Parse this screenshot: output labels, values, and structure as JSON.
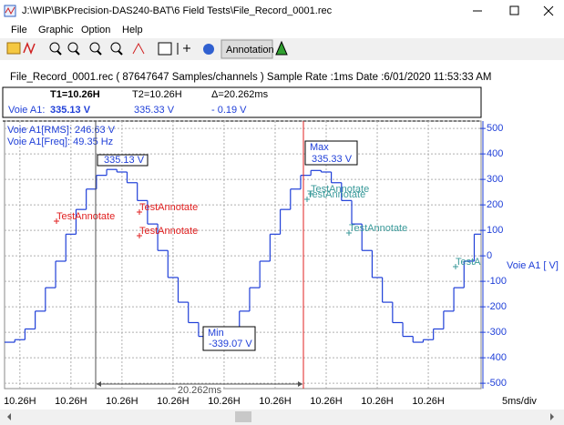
{
  "window": {
    "title": "J:\\WIP\\BKPrecision-DAS240-BAT\\6 Field Tests\\File_Record_0001.rec"
  },
  "menu": [
    "File",
    "Graphic",
    "Option",
    "Help"
  ],
  "toolbar": {
    "annotation": "Annotation"
  },
  "info": "File_Record_0001.rec  ( 87647647 Samples/channels ) Sample Rate :1ms  Date :6/01/2020  11:53:33 AM",
  "cursor_table": {
    "header": [
      "T1=10.26H",
      "T2=10.26H",
      "Δ=20.262ms"
    ],
    "row": [
      "Voie A1:",
      "335.13 V",
      "335.33 V",
      "-  0.19 V"
    ]
  },
  "chart_data": {
    "type": "line",
    "step": true,
    "color": "#1f3fd8",
    "ylabel": "Voie A1 [ V]",
    "xlabel": "5ms/div",
    "stats": [
      "Voie A1[RMS]: 246.63 V",
      "Voie A1[Freq]: 49.35 Hz"
    ],
    "x": [
      0,
      1,
      2,
      3,
      4,
      5,
      6,
      7,
      8,
      9,
      10,
      11,
      12,
      13,
      14,
      15,
      16,
      17,
      18,
      19,
      20,
      21,
      22,
      23,
      24,
      25,
      26,
      27,
      28,
      29,
      30,
      31,
      32,
      33,
      34,
      35,
      36,
      37,
      38,
      39,
      40,
      41,
      42,
      43,
      44,
      45,
      46
    ],
    "values": [
      -339,
      -329,
      -287,
      -217,
      -125,
      -21,
      85,
      182,
      262,
      316,
      339,
      329,
      287,
      217,
      125,
      21,
      -85,
      -182,
      -262,
      -316,
      -339,
      -329,
      -287,
      -217,
      -125,
      -21,
      85,
      182,
      262,
      316,
      335,
      329,
      287,
      217,
      125,
      21,
      -85,
      -182,
      -262,
      -316,
      -339,
      -329,
      -287,
      -217,
      -125,
      -21,
      85
    ],
    "xlim": [
      0,
      46.67
    ],
    "ylim": [
      -521,
      529
    ],
    "xticks": [
      {
        "value": 1.5,
        "label": "10.26H"
      },
      {
        "value": 6.5,
        "label": "10.26H"
      },
      {
        "value": 11.5,
        "label": "10.26H"
      },
      {
        "value": 16.5,
        "label": "10.26H"
      },
      {
        "value": 21.5,
        "label": "10.26H"
      },
      {
        "value": 26.5,
        "label": "10.26H"
      },
      {
        "value": 31.5,
        "label": "10.26H"
      },
      {
        "value": 36.5,
        "label": "10.26H"
      },
      {
        "value": 41.5,
        "label": "10.26H"
      }
    ],
    "yticks": [
      500,
      400,
      300,
      200,
      100,
      0,
      -100,
      -200,
      -300,
      -400,
      -500
    ],
    "grid": true,
    "markers": {
      "t1": "335.13 V",
      "max_title": "Max",
      "max": "335.33 V",
      "min_title": "Min",
      "min": "-339.07 V",
      "delta": "20.262ms"
    },
    "annotations": [
      {
        "text": "TestAnnotate",
        "color": "#e02020"
      },
      {
        "text": "TestAnnotate",
        "color": "#e02020"
      },
      {
        "text": "TestAnnotate",
        "color": "#e02020"
      },
      {
        "text": "TestAnnotate",
        "color": "#3a9a9a"
      },
      {
        "text": "TestAnnotate",
        "color": "#3a9a9a"
      },
      {
        "text": "TestAnnotate",
        "color": "#3a9a9a"
      },
      {
        "text": "TestAnnotate",
        "color": "#3a9a9a"
      }
    ]
  }
}
